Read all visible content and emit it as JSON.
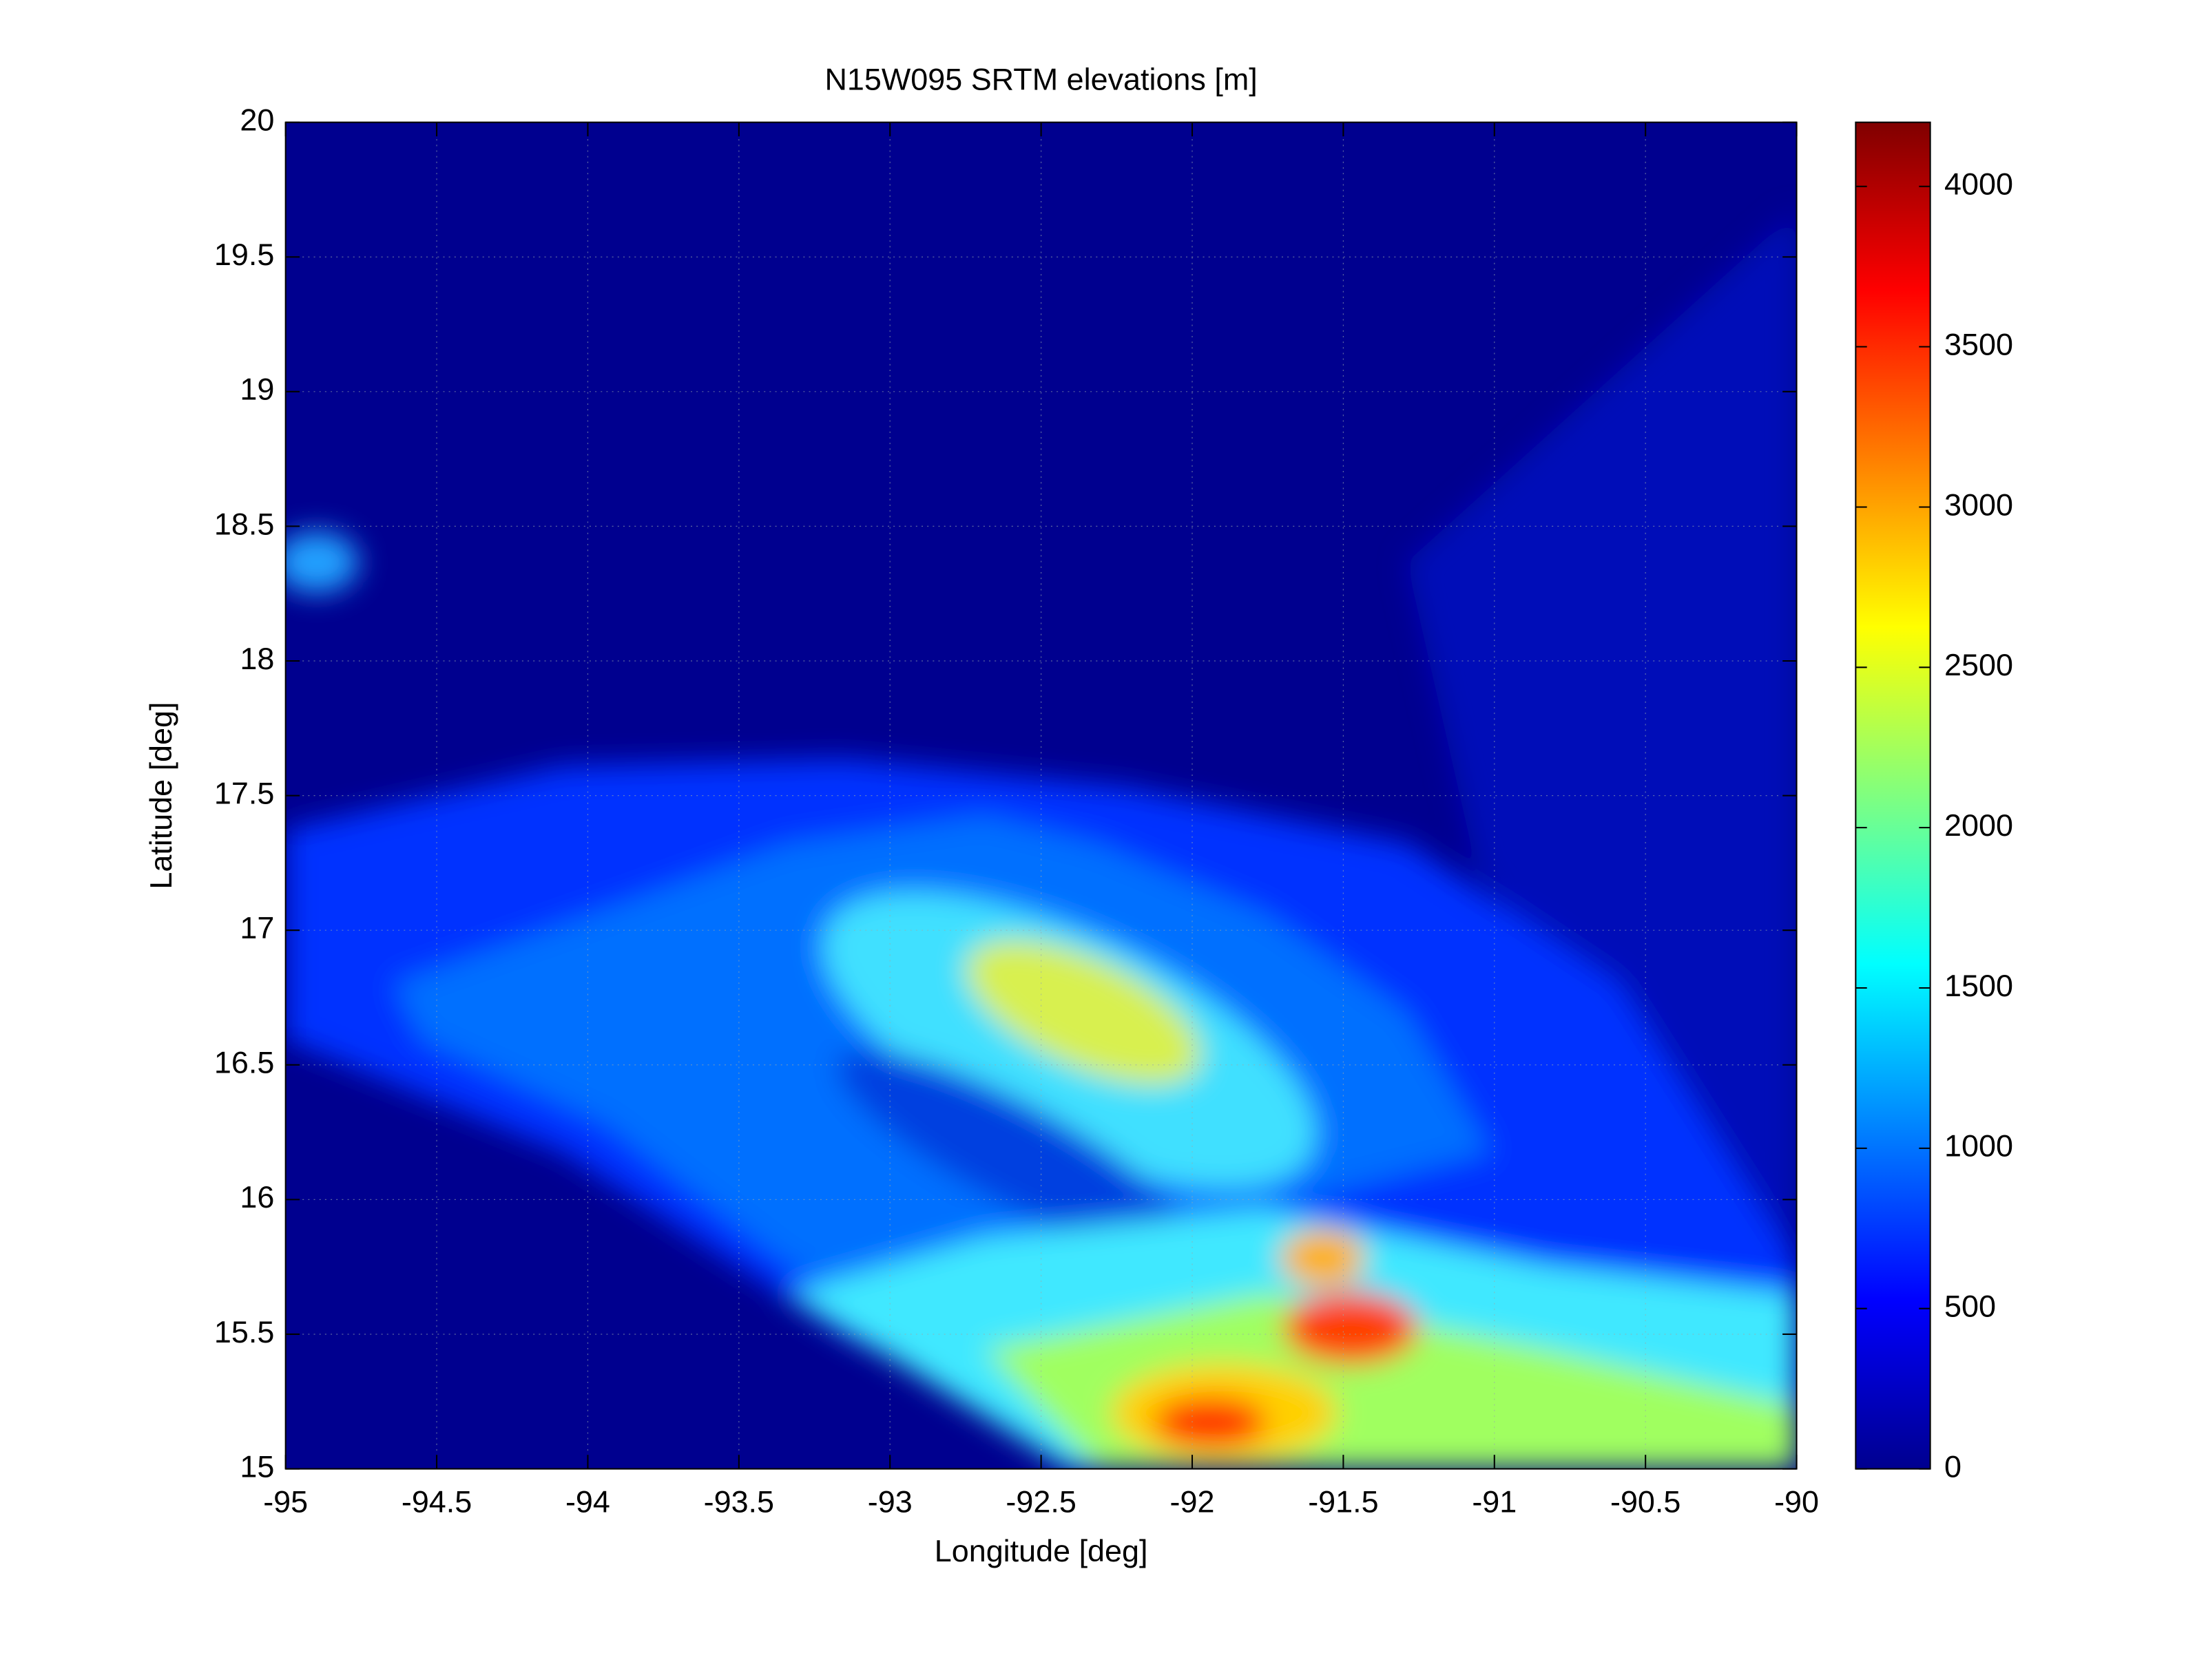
{
  "chart_data": {
    "type": "heatmap",
    "title": "N15W095 SRTM elevations [m]",
    "x_label": "Longitude [deg]",
    "y_label": "Latitude [deg]",
    "xlim": [
      -95,
      -90
    ],
    "xticks": [
      -95,
      -94.5,
      -94,
      -93.5,
      -93,
      -92.5,
      -92,
      -91.5,
      -91,
      -90.5,
      -90
    ],
    "ylim": [
      15,
      20
    ],
    "yticks": [
      15,
      15.5,
      16,
      16.5,
      17,
      17.5,
      18,
      18.5,
      19,
      19.5,
      20
    ],
    "colormap": "jet",
    "clim": [
      0,
      4200
    ],
    "cticks": [
      0,
      500,
      1000,
      1500,
      2000,
      2500,
      3000,
      3500,
      4000
    ],
    "grid": true
  }
}
